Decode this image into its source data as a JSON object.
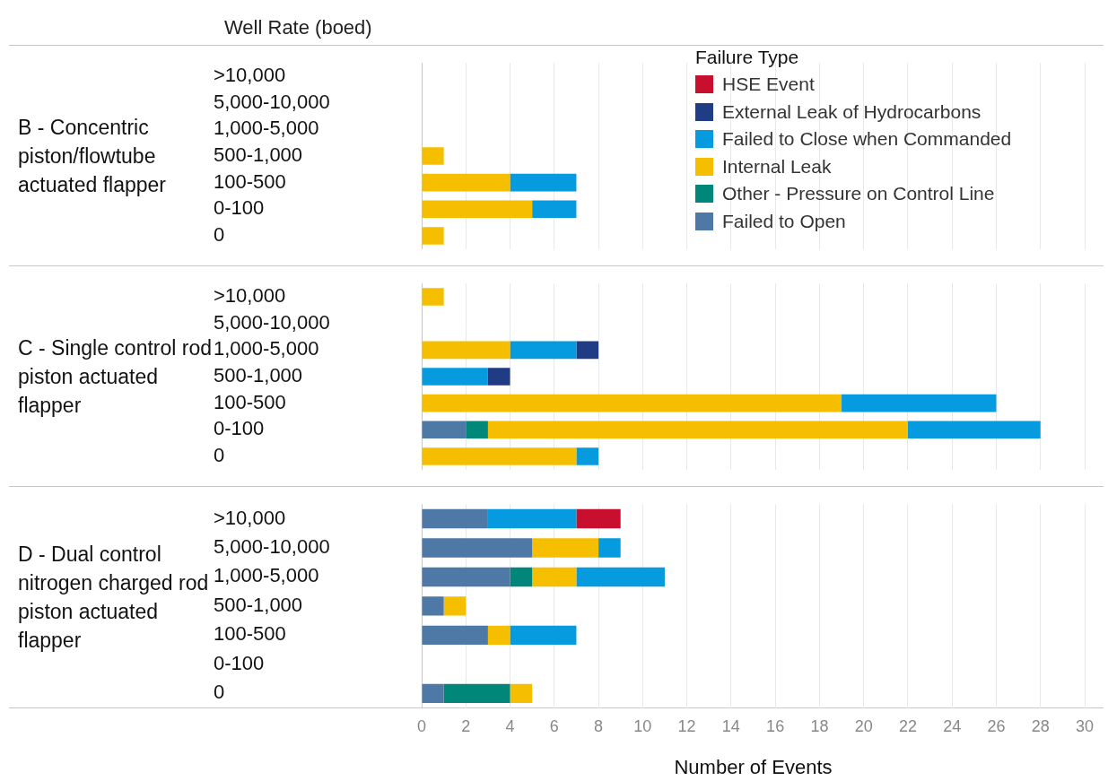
{
  "chart_data": [
    {
      "type": "bar",
      "orientation": "horizontal",
      "stacked": true,
      "title": "B - Concentric piston/flowtube actuated flapper",
      "ylabel": "Well Rate (boed)",
      "legend_title": "Failure Type",
      "legend": "top right",
      "grid": "x",
      "tick_labels": "y",
      "categories": [
        ">10,000",
        "5,000-10,000",
        "1,000-5,000",
        "500-1,000",
        "100-500",
        "0-100",
        "0"
      ],
      "xlim": [
        0,
        30
      ],
      "xticks": [
        0,
        2,
        4,
        6,
        8,
        10,
        12,
        14,
        16,
        18,
        20,
        22,
        24,
        26,
        28,
        30
      ],
      "series": [
        {
          "name": "Failed to Open",
          "color": "#4e79a7",
          "values": [
            null,
            null,
            null,
            null,
            null,
            null,
            null
          ]
        },
        {
          "name": "Other - Pressure on Control Line",
          "color": "#00877a",
          "values": [
            null,
            null,
            null,
            null,
            null,
            null,
            null
          ]
        },
        {
          "name": "Internal Leak",
          "color": "#f5bf00",
          "values": [
            null,
            null,
            null,
            1,
            4,
            5,
            1
          ]
        },
        {
          "name": "Failed to Close when Commanded",
          "color": "#069bde",
          "values": [
            null,
            null,
            null,
            null,
            3,
            2,
            null
          ]
        },
        {
          "name": "External Leak of Hydrocarbons",
          "color": "#203c85",
          "values": [
            null,
            null,
            null,
            null,
            null,
            null,
            null
          ]
        },
        {
          "name": "HSE Event",
          "color": "#c8102e",
          "values": [
            null,
            null,
            null,
            null,
            null,
            null,
            null
          ]
        }
      ]
    },
    {
      "type": "bar",
      "orientation": "horizontal",
      "stacked": true,
      "title": "C - Single control rod piston actuated flapper",
      "grid": "x",
      "tick_labels": "y",
      "categories": [
        ">10,000",
        "5,000-10,000",
        "1,000-5,000",
        "500-1,000",
        "100-500",
        "0-100",
        "0"
      ],
      "xlim": [
        0,
        30
      ],
      "xticks": [
        0,
        2,
        4,
        6,
        8,
        10,
        12,
        14,
        16,
        18,
        20,
        22,
        24,
        26,
        28,
        30
      ],
      "series": [
        {
          "color": "#4e79a7",
          "values": [
            null,
            null,
            null,
            null,
            null,
            2,
            null
          ]
        },
        {
          "color": "#00877a",
          "values": [
            null,
            null,
            null,
            null,
            null,
            1,
            null
          ]
        },
        {
          "color": "#f5bf00",
          "values": [
            1,
            null,
            4,
            null,
            19,
            19,
            7
          ]
        },
        {
          "color": "#069bde",
          "values": [
            null,
            null,
            3,
            3,
            7,
            6,
            1
          ]
        },
        {
          "color": "#203c85",
          "values": [
            null,
            null,
            1,
            1,
            null,
            null,
            null
          ]
        },
        {
          "color": "#c8102e",
          "values": [
            null,
            null,
            null,
            null,
            null,
            null,
            null
          ]
        }
      ]
    },
    {
      "type": "bar",
      "orientation": "horizontal",
      "stacked": true,
      "title": "D - Dual control nitrogen charged rod piston actuated flapper",
      "xlabel": "Number of Events",
      "grid": "x",
      "categories": [
        ">10,000",
        "5,000-10,000",
        "1,000-5,000",
        "500-1,000",
        "100-500",
        "0-100",
        "0"
      ],
      "xlim": [
        0,
        30
      ],
      "xticks": [
        0,
        2,
        4,
        6,
        8,
        10,
        12,
        14,
        16,
        18,
        20,
        22,
        24,
        26,
        28,
        30
      ],
      "series": [
        {
          "color": "#4e79a7",
          "values": [
            3,
            5,
            4,
            1,
            3,
            null,
            1
          ]
        },
        {
          "color": "#00877a",
          "values": [
            null,
            null,
            1,
            null,
            null,
            null,
            3
          ]
        },
        {
          "color": "#f5bf00",
          "values": [
            null,
            3,
            2,
            1,
            1,
            null,
            1
          ]
        },
        {
          "color": "#069bde",
          "values": [
            4,
            1,
            4,
            null,
            3,
            null,
            null
          ]
        },
        {
          "color": "#203c85",
          "values": [
            null,
            null,
            null,
            null,
            null,
            null,
            null
          ]
        },
        {
          "color": "#c8102e",
          "values": [
            2,
            null,
            null,
            null,
            null,
            null,
            null
          ]
        }
      ]
    }
  ]
}
